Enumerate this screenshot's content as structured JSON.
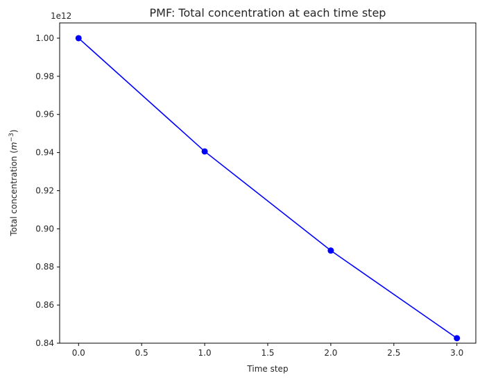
{
  "chart_data": {
    "type": "line",
    "title": "PMF: Total concentration at each time step",
    "xlabel": "Time step",
    "ylabel_main": "Total concentration (",
    "ylabel_unit_base": "m",
    "ylabel_unit_exp": "−3",
    "ylabel_close": ")",
    "offset_text": "1e12",
    "x": [
      0.0,
      1.0,
      2.0,
      3.0
    ],
    "series": [
      {
        "values": [
          1.0,
          0.9406,
          0.8886,
          0.8426
        ],
        "color": "#0000ff"
      }
    ],
    "xlim": [
      -0.15,
      3.15
    ],
    "ylim": [
      0.84,
      1.008
    ],
    "xticks": [
      "0.0",
      "0.5",
      "1.0",
      "1.5",
      "2.0",
      "2.5",
      "3.0"
    ],
    "xtick_values": [
      0.0,
      0.5,
      1.0,
      1.5,
      2.0,
      2.5,
      3.0
    ],
    "yticks": [
      "0.84",
      "0.86",
      "0.88",
      "0.90",
      "0.92",
      "0.94",
      "0.96",
      "0.98",
      "1.00"
    ],
    "ytick_values": [
      0.84,
      0.86,
      0.88,
      0.9,
      0.92,
      0.94,
      0.96,
      0.98,
      1.0
    ],
    "grid": false,
    "legend": "none",
    "marker": "circle"
  }
}
